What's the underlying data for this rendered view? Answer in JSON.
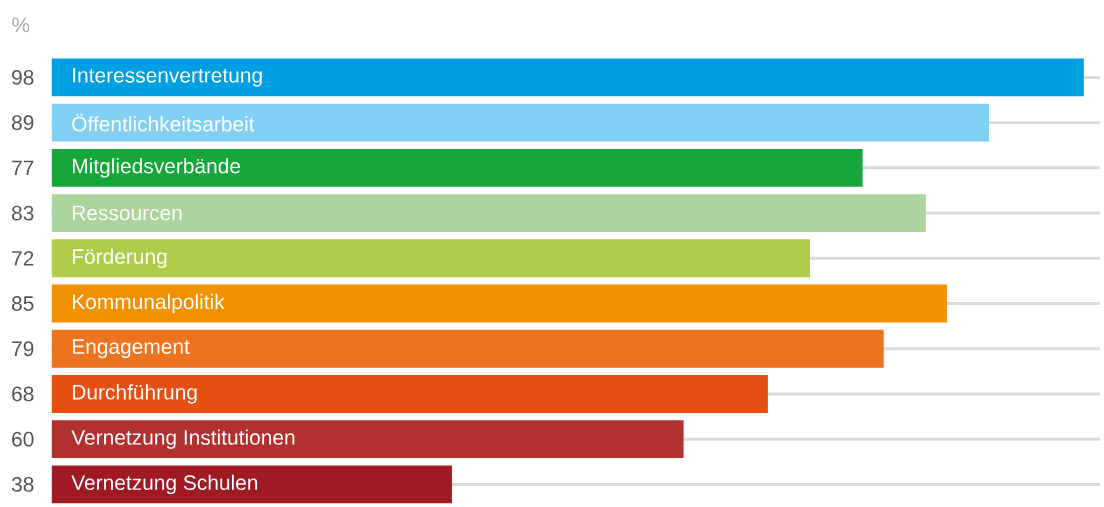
{
  "chart_data": {
    "type": "bar",
    "orientation": "horizontal",
    "ylabel": "%",
    "categories": [
      "Interessenvertretung",
      "Öffentlichkeitsarbeit",
      "Mitgliedsverbände",
      "Ressourcen",
      "Förderung",
      "Kommunalpolitik",
      "Engagement",
      "Durchführung",
      "Vernetzung Institutionen",
      "Vernetzung Schulen"
    ],
    "values": [
      98,
      89,
      77,
      83,
      72,
      85,
      79,
      68,
      60,
      38
    ],
    "colors": [
      "#009fe3",
      "#82cff5",
      "#16a63a",
      "#abd39b",
      "#afcd48",
      "#f29100",
      "#ee731e",
      "#e64f12",
      "#b1312f",
      "#a01a24"
    ],
    "data_labels": true,
    "grid": "y"
  }
}
